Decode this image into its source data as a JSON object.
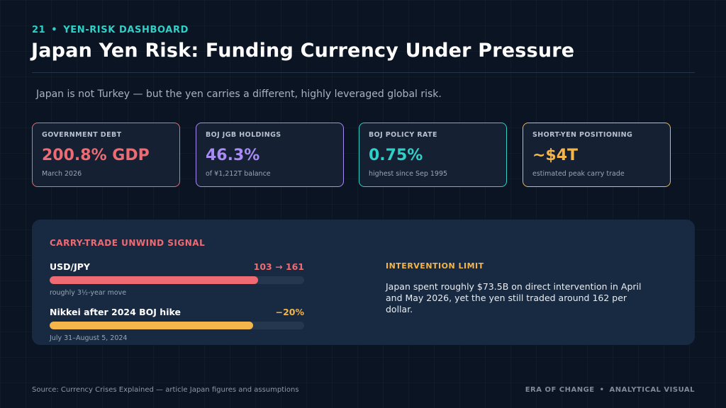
{
  "header": {
    "slide_number": "21",
    "separator": "•",
    "section_label": "YEN-RISK DASHBOARD",
    "title": "Japan Yen Risk: Funding Currency Under Pressure",
    "subtitle": "Japan is not Turkey — but the yen carries a different, highly leveraged global risk."
  },
  "stat_cards": [
    {
      "label": "GOVERNMENT DEBT",
      "value": "200.8% GDP",
      "note": "March 2026",
      "color": "#ee6b73"
    },
    {
      "label": "BOJ JGB HOLDINGS",
      "value": "46.3%",
      "note": "of ¥1,212T balance",
      "color": "#a98bf5"
    },
    {
      "label": "BOJ POLICY RATE",
      "value": "0.75%",
      "note": "highest since Sep 1995",
      "color": "#2fd0c8"
    },
    {
      "label": "SHORT-YEN POSITIONING",
      "value": "~$4T",
      "note": "estimated peak carry trade",
      "color": "#f4b64a"
    }
  ],
  "signal_panel": {
    "title": "CARRY-TRADE UNWIND SIGNAL",
    "bars": [
      {
        "name": "USD/JPY",
        "figure": "103 → 161",
        "caption": "roughly 3½-year move",
        "fill_fraction": 0.82,
        "color": "#ee6b73"
      },
      {
        "name": "Nikkei after 2024 BOJ hike",
        "figure": "−20%",
        "caption": "July 31–August 5, 2024",
        "fill_fraction": 0.8,
        "color": "#f4b64a"
      }
    ],
    "side_title": "INTERVENTION LIMIT",
    "side_text": "Japan spent roughly $73.5B on direct intervention in April and May 2026, yet the yen still traded around 162 per dollar."
  },
  "footer": {
    "source": "Source: Currency Crises Explained — article Japan figures and assumptions",
    "brand_left": "ERA OF CHANGE",
    "brand_separator": "•",
    "brand_right": "ANALYTICAL VISUAL"
  }
}
